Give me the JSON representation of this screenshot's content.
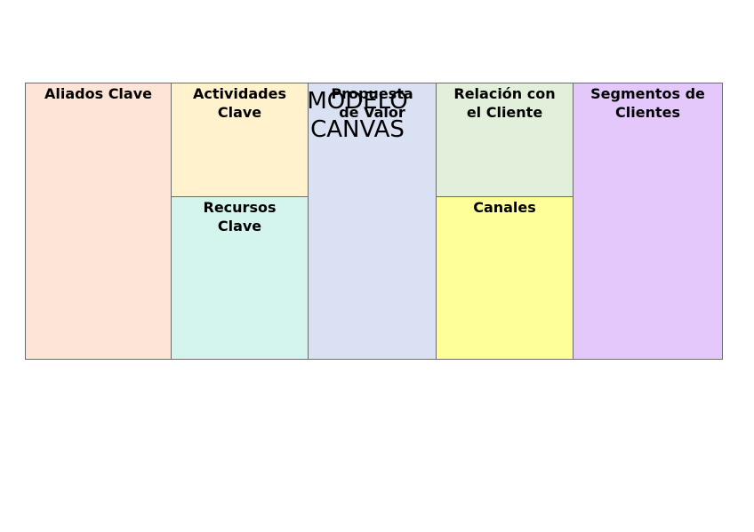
{
  "title": {
    "lines": [
      "MODELO",
      "CANVAS"
    ]
  },
  "blocks": [
    {
      "lines": [
        "Aliados Clave"
      ]
    },
    {
      "lines": [
        "Actividades",
        "Clave"
      ]
    },
    {
      "lines": [
        "Recursos",
        "Clave"
      ]
    },
    {
      "lines": [
        "Propuesta",
        "de Valor"
      ]
    },
    {
      "lines": [
        "Relación con",
        "el Cliente"
      ]
    },
    {
      "lines": [
        "Canales"
      ]
    },
    {
      "lines": [
        "Segmentos de",
        "Clientes"
      ]
    }
  ]
}
